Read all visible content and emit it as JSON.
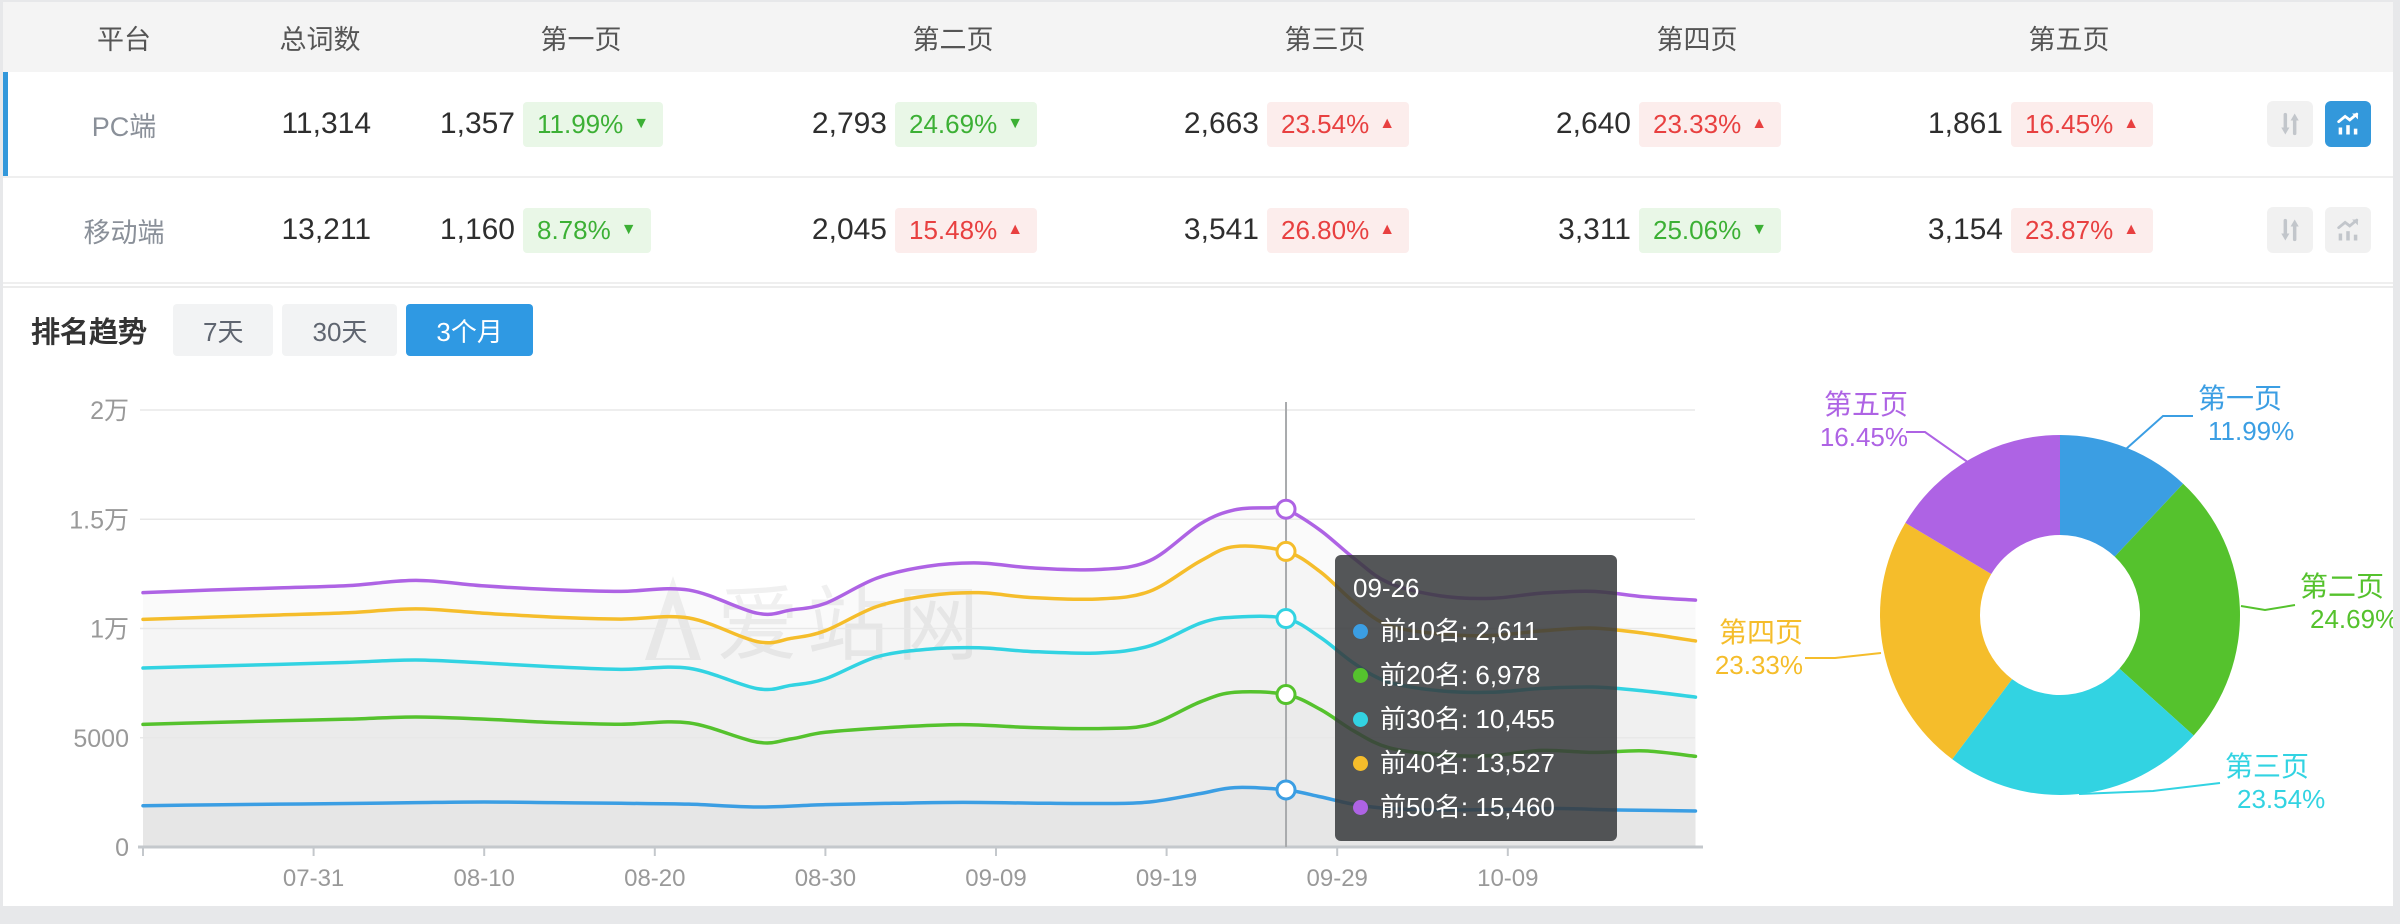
{
  "accent": "#3398db",
  "table": {
    "headers": [
      "平台",
      "总词数",
      "第一页",
      "第二页",
      "第三页",
      "第四页",
      "第五页"
    ],
    "rows": [
      {
        "platform": "PC端",
        "total": "11,314",
        "selected": true,
        "pages": [
          {
            "count": "1,357",
            "pct": "11.99%",
            "tone": "green",
            "dir": "down"
          },
          {
            "count": "2,793",
            "pct": "24.69%",
            "tone": "green",
            "dir": "down"
          },
          {
            "count": "2,663",
            "pct": "23.54%",
            "tone": "red",
            "dir": "up"
          },
          {
            "count": "2,640",
            "pct": "23.33%",
            "tone": "red",
            "dir": "up"
          },
          {
            "count": "1,861",
            "pct": "16.45%",
            "tone": "red",
            "dir": "up"
          }
        ],
        "compare_active": false,
        "trend_active": true
      },
      {
        "platform": "移动端",
        "total": "13,211",
        "selected": false,
        "pages": [
          {
            "count": "1,160",
            "pct": "8.78%",
            "tone": "green",
            "dir": "down"
          },
          {
            "count": "2,045",
            "pct": "15.48%",
            "tone": "red",
            "dir": "up"
          },
          {
            "count": "3,541",
            "pct": "26.80%",
            "tone": "red",
            "dir": "up"
          },
          {
            "count": "3,311",
            "pct": "25.06%",
            "tone": "green",
            "dir": "down"
          },
          {
            "count": "3,154",
            "pct": "23.87%",
            "tone": "red",
            "dir": "up"
          }
        ],
        "compare_active": false,
        "trend_active": false
      }
    ]
  },
  "trend": {
    "title": "排名趋势",
    "ranges": [
      {
        "label": "7天",
        "active": false
      },
      {
        "label": "30天",
        "active": false
      },
      {
        "label": "3个月",
        "active": true
      }
    ],
    "watermark": "爱站网"
  },
  "tooltip": {
    "title": "09-26",
    "items": [
      {
        "label": "前10名",
        "value": "2,611",
        "color": "#3b9ee3"
      },
      {
        "label": "前20名",
        "value": "6,978",
        "color": "#55c22d"
      },
      {
        "label": "前30名",
        "value": "10,455",
        "color": "#32d3e2"
      },
      {
        "label": "前40名",
        "value": "13,527",
        "color": "#f5bd2b"
      },
      {
        "label": "前50名",
        "value": "15,460",
        "color": "#ae63e4"
      }
    ]
  },
  "chart_data": [
    {
      "type": "line",
      "title": "排名趋势 3个月",
      "x_ticks": [
        "07-31",
        "08-10",
        "08-20",
        "08-30",
        "09-09",
        "09-19",
        "09-29",
        "10-09"
      ],
      "x_tick_days": [
        10,
        20,
        30,
        40,
        50,
        60,
        70,
        80
      ],
      "x_range_days": [
        0,
        91
      ],
      "y_tick_labels": [
        "0",
        "5000",
        "1万",
        "1.5万",
        "2万"
      ],
      "y_tick_values": [
        0,
        5000,
        10000,
        15000,
        20000
      ],
      "ylim": [
        0,
        20000
      ],
      "grid": true,
      "crosshair_date": "09-26",
      "crosshair_day": 67,
      "series": [
        {
          "name": "前10名",
          "color": "#3b9ee3",
          "crosshair_value": 2611,
          "points": [
            [
              0,
              1890
            ],
            [
              4,
              1930
            ],
            [
              8,
              1960
            ],
            [
              12,
              1990
            ],
            [
              16,
              2030
            ],
            [
              20,
              2060
            ],
            [
              24,
              2030
            ],
            [
              28,
              2000
            ],
            [
              32,
              1960
            ],
            [
              36,
              1830
            ],
            [
              40,
              1940
            ],
            [
              44,
              2000
            ],
            [
              48,
              2040
            ],
            [
              52,
              2010
            ],
            [
              56,
              1990
            ],
            [
              59,
              2060
            ],
            [
              62,
              2450
            ],
            [
              64,
              2720
            ],
            [
              67,
              2611
            ],
            [
              69,
              2300
            ],
            [
              71,
              1950
            ],
            [
              73,
              1760
            ],
            [
              76,
              1700
            ],
            [
              80,
              1720
            ],
            [
              83,
              1760
            ],
            [
              86,
              1700
            ],
            [
              89,
              1670
            ],
            [
              91,
              1650
            ]
          ]
        },
        {
          "name": "前20名",
          "color": "#55c22d",
          "crosshair_value": 6978,
          "points": [
            [
              0,
              5610
            ],
            [
              4,
              5700
            ],
            [
              8,
              5780
            ],
            [
              12,
              5850
            ],
            [
              16,
              5950
            ],
            [
              20,
              5850
            ],
            [
              24,
              5700
            ],
            [
              28,
              5620
            ],
            [
              32,
              5680
            ],
            [
              36,
              4800
            ],
            [
              38,
              4950
            ],
            [
              40,
              5250
            ],
            [
              44,
              5480
            ],
            [
              48,
              5600
            ],
            [
              52,
              5470
            ],
            [
              56,
              5420
            ],
            [
              59,
              5600
            ],
            [
              62,
              6650
            ],
            [
              64,
              7080
            ],
            [
              67,
              6978
            ],
            [
              69,
              6300
            ],
            [
              71,
              5300
            ],
            [
              73,
              4550
            ],
            [
              76,
              4220
            ],
            [
              79,
              4180
            ],
            [
              82,
              4420
            ],
            [
              85,
              4330
            ],
            [
              88,
              4400
            ],
            [
              91,
              4150
            ]
          ]
        },
        {
          "name": "前30名",
          "color": "#32d3e2",
          "crosshair_value": 10455,
          "points": [
            [
              0,
              8190
            ],
            [
              4,
              8280
            ],
            [
              8,
              8360
            ],
            [
              12,
              8450
            ],
            [
              16,
              8560
            ],
            [
              20,
              8420
            ],
            [
              24,
              8250
            ],
            [
              28,
              8130
            ],
            [
              32,
              8180
            ],
            [
              36,
              7250
            ],
            [
              38,
              7400
            ],
            [
              40,
              7700
            ],
            [
              43,
              8700
            ],
            [
              46,
              9050
            ],
            [
              49,
              9120
            ],
            [
              52,
              8950
            ],
            [
              56,
              8880
            ],
            [
              59,
              9200
            ],
            [
              62,
              10250
            ],
            [
              64,
              10520
            ],
            [
              67,
              10455
            ],
            [
              69,
              9600
            ],
            [
              71,
              8400
            ],
            [
              73,
              7550
            ],
            [
              76,
              7150
            ],
            [
              79,
              7080
            ],
            [
              82,
              7260
            ],
            [
              85,
              7320
            ],
            [
              88,
              7140
            ],
            [
              91,
              6860
            ]
          ]
        },
        {
          "name": "前40名",
          "color": "#f5bd2b",
          "crosshair_value": 13527,
          "points": [
            [
              0,
              10420
            ],
            [
              4,
              10520
            ],
            [
              8,
              10620
            ],
            [
              12,
              10720
            ],
            [
              16,
              10900
            ],
            [
              20,
              10700
            ],
            [
              24,
              10520
            ],
            [
              28,
              10430
            ],
            [
              32,
              10480
            ],
            [
              36,
              9400
            ],
            [
              38,
              9550
            ],
            [
              40,
              9900
            ],
            [
              43,
              11000
            ],
            [
              46,
              11500
            ],
            [
              49,
              11640
            ],
            [
              52,
              11420
            ],
            [
              56,
              11350
            ],
            [
              59,
              11700
            ],
            [
              62,
              13100
            ],
            [
              64,
              13750
            ],
            [
              67,
              13527
            ],
            [
              69,
              12600
            ],
            [
              71,
              11200
            ],
            [
              73,
              10150
            ],
            [
              76,
              9750
            ],
            [
              79,
              9680
            ],
            [
              82,
              9890
            ],
            [
              85,
              10020
            ],
            [
              88,
              9780
            ],
            [
              91,
              9430
            ]
          ]
        },
        {
          "name": "前50名",
          "color": "#ae63e4",
          "crosshair_value": 15460,
          "points": [
            [
              0,
              11640
            ],
            [
              4,
              11760
            ],
            [
              8,
              11860
            ],
            [
              12,
              11960
            ],
            [
              16,
              12200
            ],
            [
              20,
              11950
            ],
            [
              24,
              11780
            ],
            [
              28,
              11700
            ],
            [
              32,
              11760
            ],
            [
              36,
              10700
            ],
            [
              38,
              10850
            ],
            [
              40,
              11150
            ],
            [
              43,
              12300
            ],
            [
              46,
              12850
            ],
            [
              49,
              13000
            ],
            [
              52,
              12780
            ],
            [
              56,
              12700
            ],
            [
              59,
              13100
            ],
            [
              62,
              14800
            ],
            [
              64,
              15430
            ],
            [
              66,
              15520
            ],
            [
              67,
              15460
            ],
            [
              69,
              14500
            ],
            [
              71,
              13200
            ],
            [
              73,
              12100
            ],
            [
              76,
              11500
            ],
            [
              79,
              11380
            ],
            [
              82,
              11620
            ],
            [
              85,
              11700
            ],
            [
              88,
              11450
            ],
            [
              91,
              11300
            ]
          ]
        }
      ]
    },
    {
      "type": "pie",
      "shape": "donut",
      "slices": [
        {
          "name": "第一页",
          "pct": 11.99,
          "color": "#3b9ee3"
        },
        {
          "name": "第二页",
          "pct": 24.69,
          "color": "#55c22d"
        },
        {
          "name": "第三页",
          "pct": 23.54,
          "color": "#32d3e2"
        },
        {
          "name": "第四页",
          "pct": 23.33,
          "color": "#f5bd2b"
        },
        {
          "name": "第五页",
          "pct": 16.45,
          "color": "#ae63e4"
        }
      ]
    }
  ]
}
